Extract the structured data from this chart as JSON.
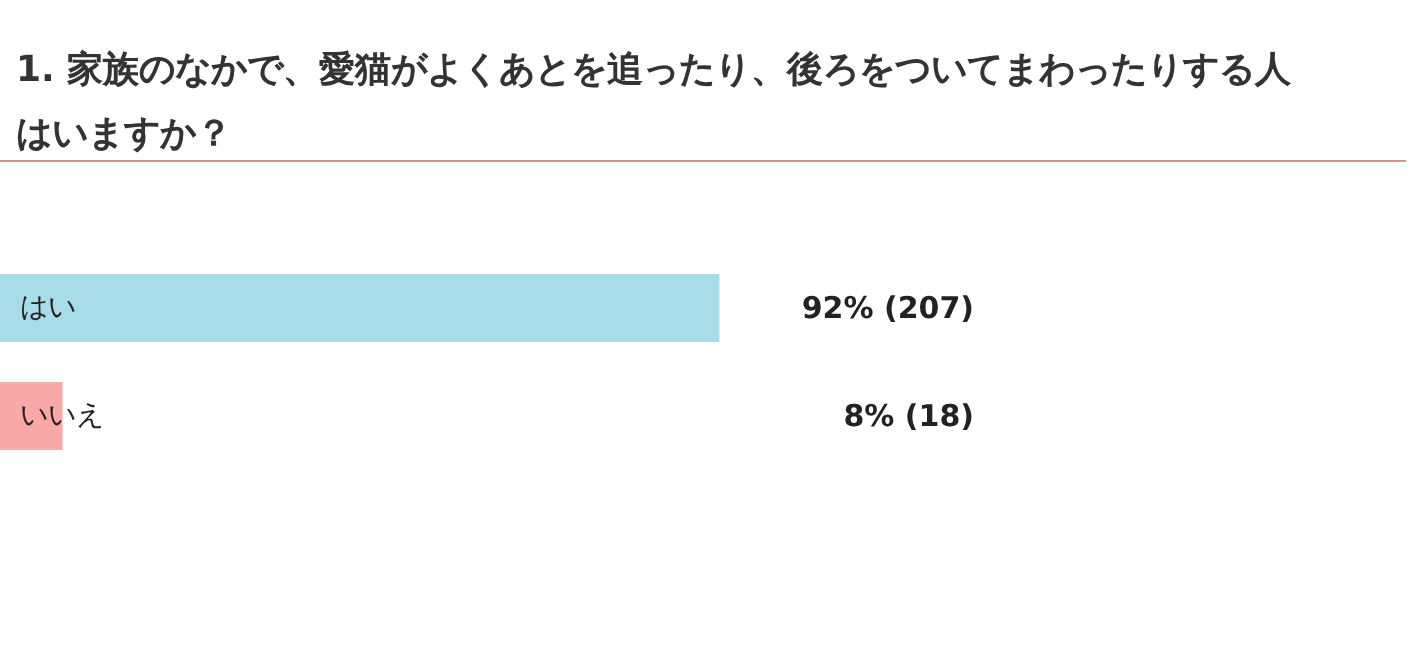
{
  "chart_data": {
    "type": "bar",
    "orientation": "horizontal",
    "title": "1. 家族のなかで、愛猫がよくあとを追ったり、後ろをついてまわったりする人はいますか？",
    "categories": [
      "はい",
      "いいえ"
    ],
    "values": [
      92,
      8
    ],
    "colors": [
      "#a8dce8",
      "#f9a8a8"
    ],
    "value_labels": [
      "92% (207)",
      "8% (18)"
    ],
    "tick_labels": "y"
  }
}
